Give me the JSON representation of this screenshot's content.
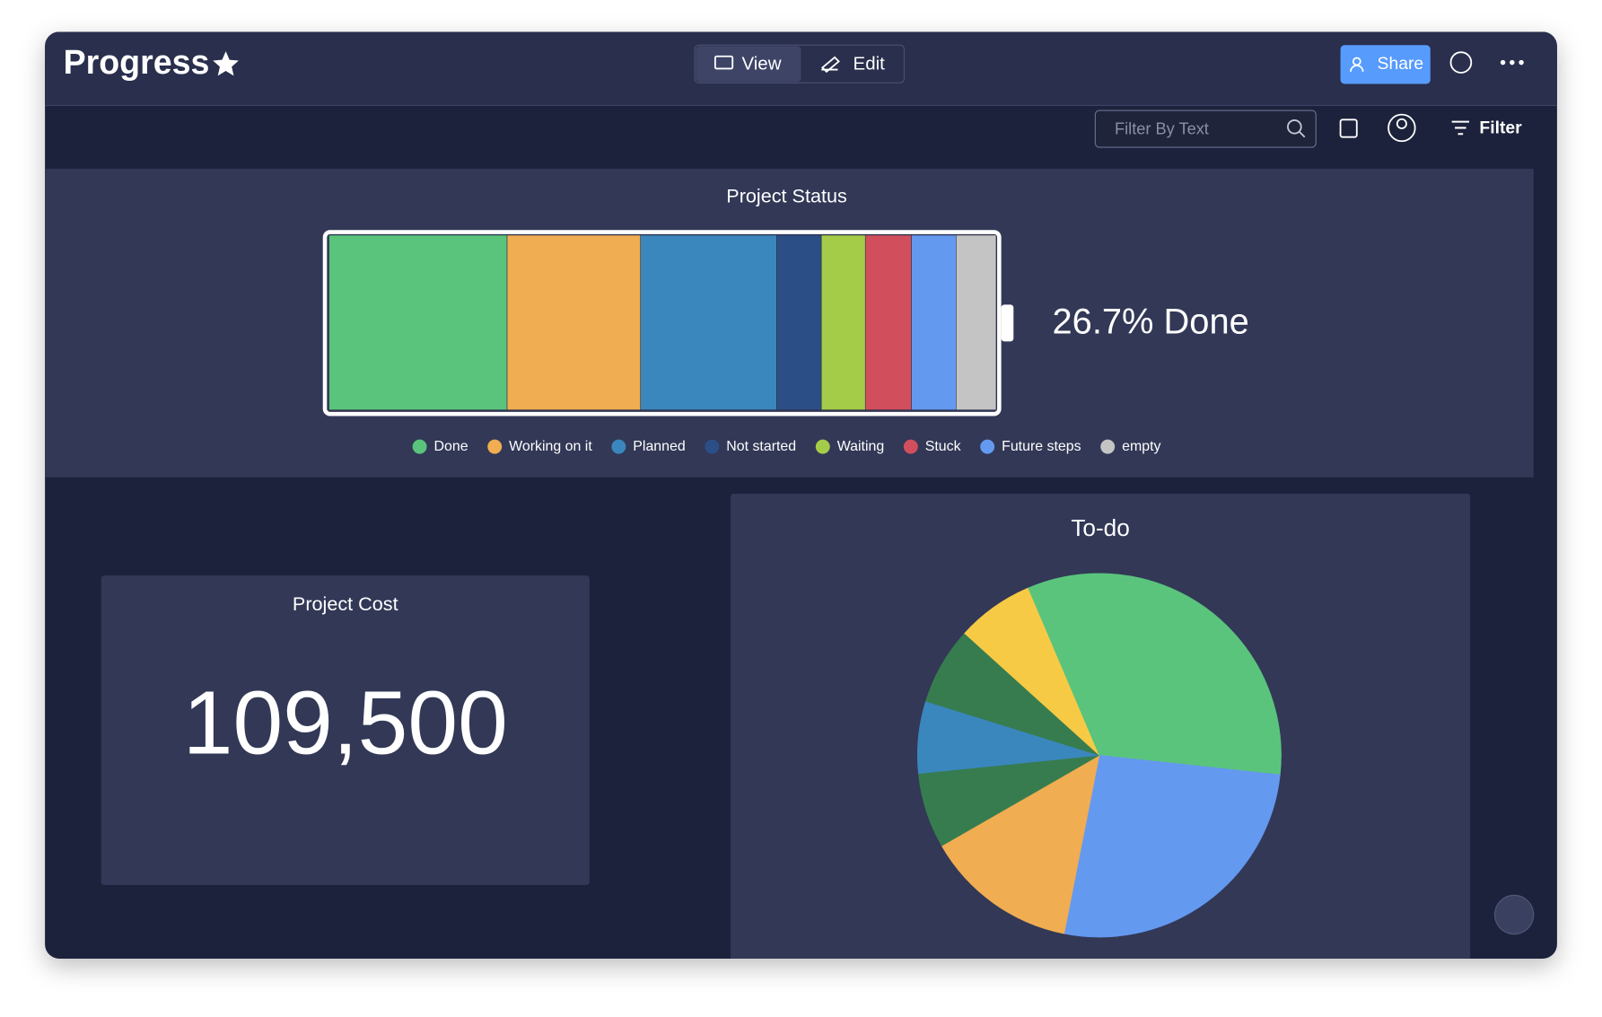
{
  "header": {
    "title": "Progress",
    "view": "View",
    "edit": "Edit",
    "share": "Share"
  },
  "toolbar": {
    "filter_placeholder": "Filter By Text",
    "filter": "Filter"
  },
  "chart_data": [
    {
      "type": "battery",
      "title": "Project Status",
      "categories": [
        "Done",
        "Working on it",
        "Planned",
        "Not started",
        "Waiting",
        "Stuck",
        "Future steps",
        "empty"
      ],
      "values": [
        26.7,
        20.0,
        20.4,
        6.7,
        6.6,
        6.9,
        6.7,
        6.0
      ],
      "colors": [
        "#5ac47d",
        "#f0ad52",
        "#3a87bd",
        "#2c4e86",
        "#a5cc48",
        "#d14f5c",
        "#6499f0",
        "#c4c4c4"
      ],
      "annotation": "26.7% Done"
    },
    {
      "type": "number",
      "title": "Project Cost",
      "values": [
        109500
      ],
      "value_labels": [
        "109,500"
      ]
    },
    {
      "type": "pie",
      "title": "To-do",
      "categories": [
        null,
        null,
        null,
        null,
        null,
        null,
        null,
        null
      ],
      "values": [
        26.7,
        26.4,
        13.6,
        6.7,
        6.4,
        6.9,
        6.9,
        6.4
      ],
      "colors": [
        "#5ac47d",
        "#6499f0",
        "#f0ad52",
        "#377c4f",
        "#3a87bd",
        "#377c4f",
        "#f7ca45",
        "#5ac47d"
      ]
    }
  ]
}
